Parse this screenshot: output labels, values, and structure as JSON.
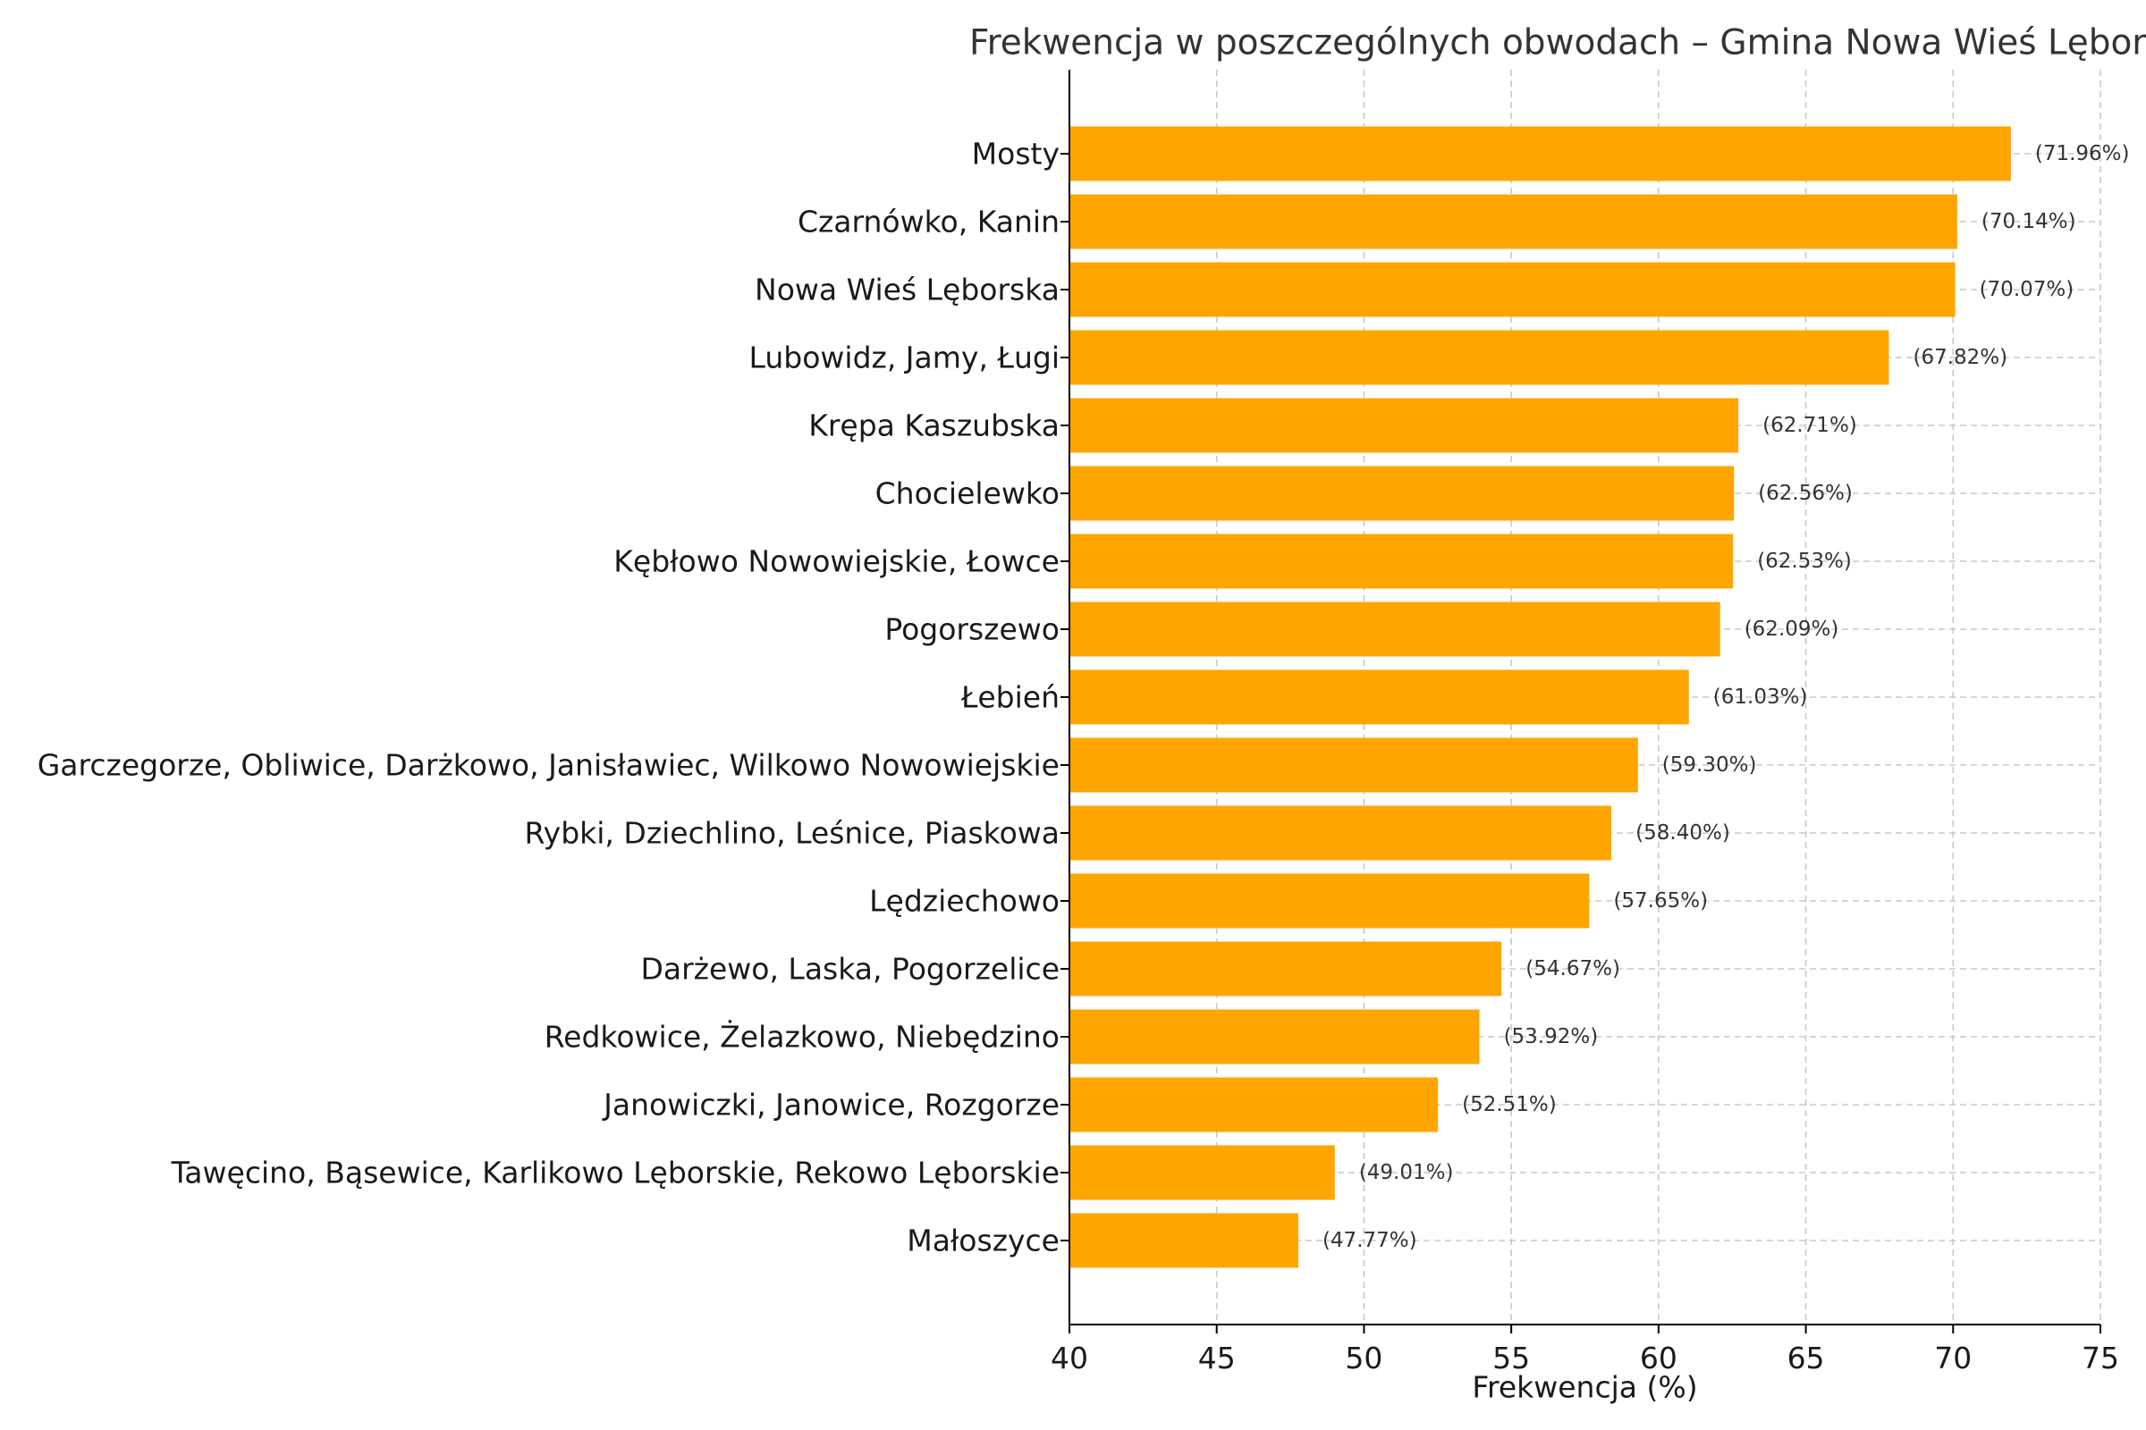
{
  "chart_data": {
    "type": "bar",
    "orientation": "horizontal",
    "title": "Frekwencja w poszczególnych obwodach – Gmina Nowa Wieś Lębors",
    "xlabel": "Frekwencja (%)",
    "ylabel": "",
    "xlim": [
      40,
      75
    ],
    "xticks": [
      40,
      45,
      50,
      55,
      60,
      65,
      70,
      75
    ],
    "grid": true,
    "bar_color": "#FFA500",
    "categories": [
      "Mosty",
      "Czarnówko, Kanin",
      "Nowa Wieś Lęborska",
      "Lubowidz, Jamy, Ługi",
      "Krępa Kaszubska",
      "Chocielewko",
      "Kębłowo Nowowiejskie, Łowce",
      "Pogorszewo",
      "Łebień",
      "Garczegorze, Obliwice, Darżkowo, Janisławiec, Wilkowo Nowowiejskie",
      "Rybki, Dziechlino, Leśnice, Piaskowa",
      "Lędziechowo",
      "Darżewo, Laska, Pogorzelice",
      "Redkowice, Żelazkowo, Niebędzino",
      "Janowiczki, Janowice, Rozgorze",
      "Tawęcino, Bąsewice, Karlikowo Lęborskie, Rekowo Lęborskie",
      "Małoszyce"
    ],
    "values": [
      71.96,
      70.14,
      70.07,
      67.82,
      62.71,
      62.56,
      62.53,
      62.09,
      61.03,
      59.3,
      58.4,
      57.65,
      54.67,
      53.92,
      52.51,
      49.01,
      47.77
    ],
    "data_labels": [
      "(71.96%)",
      "(70.14%)",
      "(70.07%)",
      "(67.82%)",
      "(62.71%)",
      "(62.56%)",
      "(62.53%)",
      "(62.09%)",
      "(61.03%)",
      "(59.30%)",
      "(58.40%)",
      "(57.65%)",
      "(54.67%)",
      "(53.92%)",
      "(52.51%)",
      "(49.01%)",
      "(47.77%)"
    ]
  }
}
